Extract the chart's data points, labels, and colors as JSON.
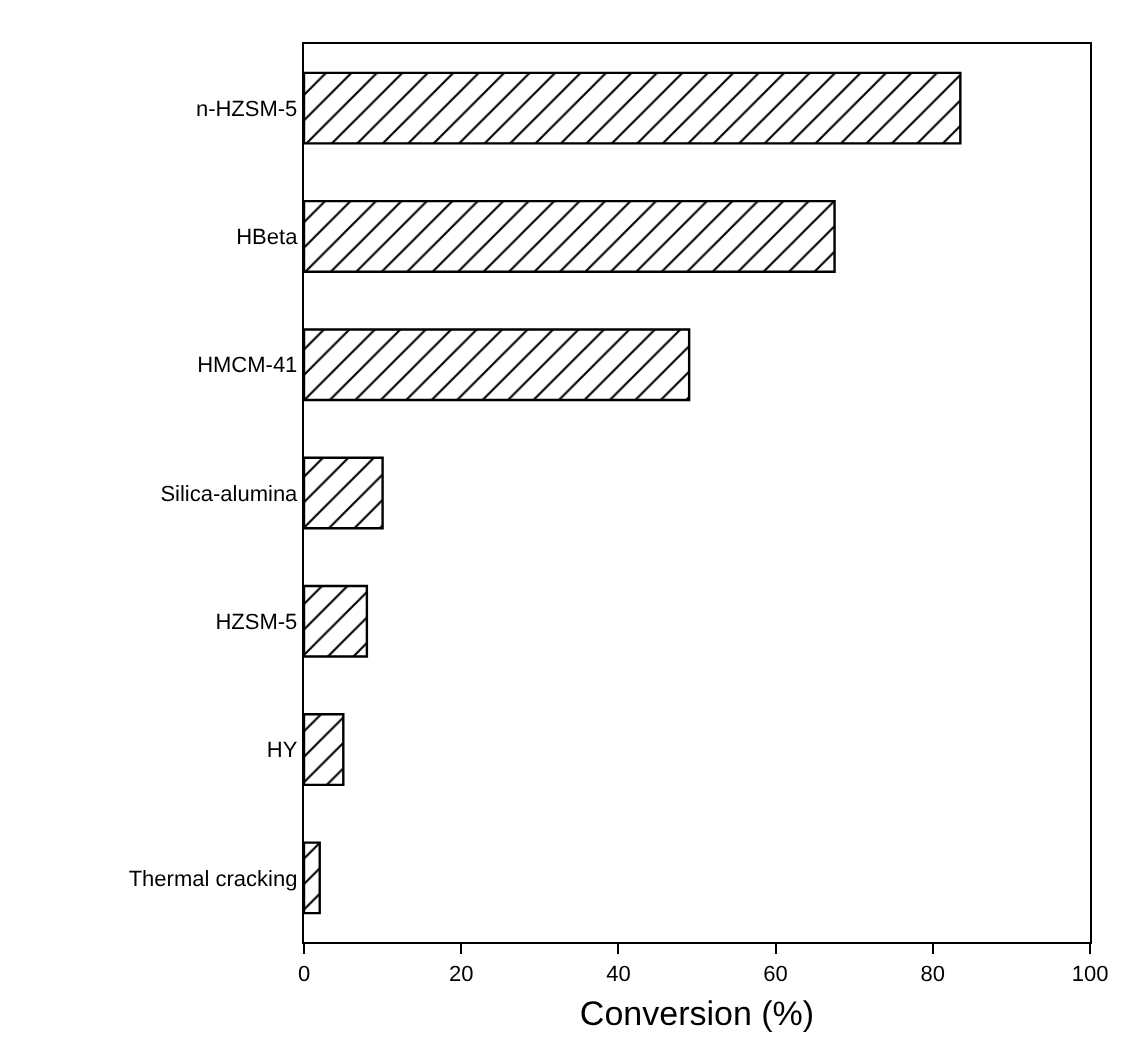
{
  "chart_data": {
    "type": "bar",
    "orientation": "horizontal",
    "categories": [
      "n-HZSM-5",
      "HBeta",
      "HMCM-41",
      "Silica-alumina",
      "HZSM-5",
      "HY",
      "Thermal cracking"
    ],
    "values": [
      83.5,
      67.5,
      49,
      10,
      8,
      5,
      2
    ],
    "color": "#000000",
    "xlabel": "Conversion (%)",
    "xlim": [
      0,
      100
    ],
    "xticks": [
      0,
      20,
      40,
      60,
      80,
      100
    ],
    "grid": false
  }
}
